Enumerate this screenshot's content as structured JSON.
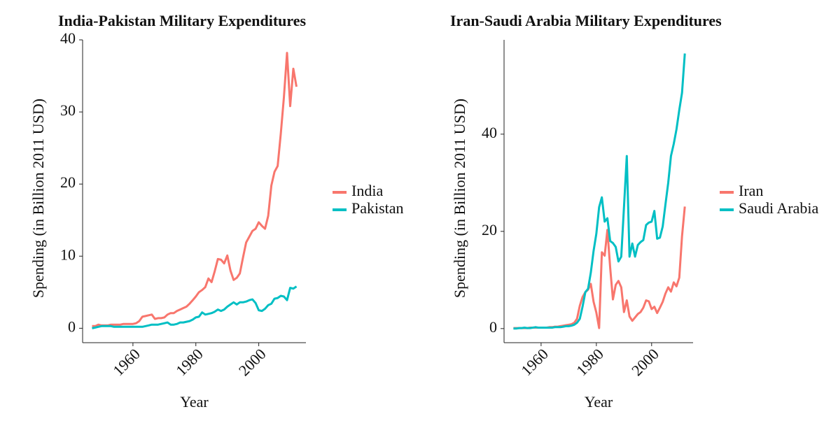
{
  "chart_data": [
    {
      "type": "line",
      "title": "India-Pakistan Military Expenditures",
      "x_label": "Year",
      "y_label": "Spending (in Billion 2011 USD)",
      "x": [
        1947,
        1948,
        1949,
        1950,
        1951,
        1952,
        1953,
        1954,
        1955,
        1956,
        1957,
        1958,
        1959,
        1960,
        1961,
        1962,
        1963,
        1964,
        1965,
        1966,
        1967,
        1968,
        1969,
        1970,
        1971,
        1972,
        1973,
        1974,
        1975,
        1976,
        1977,
        1978,
        1979,
        1980,
        1981,
        1982,
        1983,
        1984,
        1985,
        1986,
        1987,
        1988,
        1989,
        1990,
        1991,
        1992,
        1993,
        1994,
        1995,
        1996,
        1997,
        1998,
        1999,
        2000,
        2001,
        2002,
        2003,
        2004,
        2005,
        2006,
        2007,
        2008,
        2009,
        2010,
        2011,
        2012
      ],
      "series": [
        {
          "name": "India",
          "color": "#f8766d",
          "values": [
            0.3,
            0.3,
            0.5,
            0.4,
            0.4,
            0.4,
            0.5,
            0.5,
            0.5,
            0.5,
            0.6,
            0.6,
            0.6,
            0.6,
            0.7,
            1.0,
            1.6,
            1.7,
            1.8,
            1.9,
            1.3,
            1.4,
            1.4,
            1.5,
            1.9,
            2.1,
            2.1,
            2.4,
            2.6,
            2.8,
            3.0,
            3.4,
            3.9,
            4.4,
            5.0,
            5.3,
            5.7,
            6.9,
            6.4,
            7.9,
            9.6,
            9.5,
            9.0,
            10.1,
            8.0,
            6.7,
            7.0,
            7.6,
            9.8,
            11.9,
            12.7,
            13.5,
            13.8,
            14.7,
            14.2,
            13.8,
            15.6,
            19.8,
            21.7,
            22.5,
            27.0,
            32.0,
            38.2,
            30.8,
            36.0,
            33.5
          ]
        },
        {
          "name": "Pakistan",
          "color": "#00bfc4",
          "values": [
            0.0,
            0.1,
            0.2,
            0.3,
            0.3,
            0.3,
            0.3,
            0.2,
            0.2,
            0.2,
            0.2,
            0.2,
            0.2,
            0.2,
            0.2,
            0.2,
            0.2,
            0.3,
            0.4,
            0.5,
            0.5,
            0.5,
            0.6,
            0.7,
            0.8,
            0.5,
            0.5,
            0.6,
            0.8,
            0.8,
            0.9,
            1.0,
            1.2,
            1.5,
            1.6,
            2.2,
            1.9,
            2.0,
            2.1,
            2.3,
            2.6,
            2.4,
            2.6,
            3.0,
            3.3,
            3.6,
            3.3,
            3.6,
            3.6,
            3.7,
            3.9,
            4.0,
            3.5,
            2.5,
            2.4,
            2.7,
            3.2,
            3.4,
            4.1,
            4.2,
            4.5,
            4.4,
            3.9,
            5.6,
            5.5,
            5.8
          ]
        }
      ],
      "xlim": [
        1944,
        2015
      ],
      "ylim": [
        -2,
        40
      ],
      "xticks": [
        1960,
        1980,
        2000
      ],
      "yticks": [
        0,
        10,
        20,
        30,
        40
      ]
    },
    {
      "type": "line",
      "title": "Iran-Saudi Arabia Military Expenditures",
      "x_label": "Year",
      "y_label": "Spending (in Billion 2011 USD)",
      "x": [
        1950,
        1951,
        1952,
        1953,
        1954,
        1955,
        1956,
        1957,
        1958,
        1959,
        1960,
        1961,
        1962,
        1963,
        1964,
        1965,
        1966,
        1967,
        1968,
        1969,
        1970,
        1971,
        1972,
        1973,
        1974,
        1975,
        1976,
        1977,
        1978,
        1979,
        1980,
        1981,
        1982,
        1983,
        1984,
        1985,
        1986,
        1987,
        1988,
        1989,
        1990,
        1991,
        1992,
        1993,
        1994,
        1995,
        1996,
        1997,
        1998,
        1999,
        2000,
        2001,
        2002,
        2003,
        2004,
        2005,
        2006,
        2007,
        2008,
        2009,
        2010,
        2011,
        2012
      ],
      "series": [
        {
          "name": "Iran",
          "color": "#f8766d",
          "values": [
            0.1,
            0.1,
            0.1,
            0.1,
            0.1,
            0.1,
            0.2,
            0.2,
            0.2,
            0.2,
            0.2,
            0.2,
            0.2,
            0.3,
            0.3,
            0.4,
            0.4,
            0.5,
            0.6,
            0.7,
            0.8,
            0.9,
            1.2,
            2.0,
            4.7,
            6.5,
            7.5,
            8.0,
            9.2,
            5.5,
            3.3,
            0.1,
            15.7,
            15.0,
            20.3,
            12.5,
            6.0,
            9.0,
            9.8,
            8.5,
            3.4,
            5.8,
            2.5,
            1.6,
            2.3,
            3.0,
            3.4,
            4.3,
            5.8,
            5.6,
            4.0,
            4.5,
            3.2,
            4.3,
            5.5,
            7.2,
            8.5,
            7.6,
            9.5,
            8.7,
            10.5,
            19.0,
            25.1
          ]
        },
        {
          "name": "Saudi Arabia",
          "color": "#00bfc4",
          "values": [
            0.0,
            0.0,
            0.1,
            0.1,
            0.2,
            0.1,
            0.1,
            0.2,
            0.3,
            0.2,
            0.2,
            0.2,
            0.2,
            0.2,
            0.2,
            0.3,
            0.3,
            0.3,
            0.4,
            0.5,
            0.5,
            0.6,
            0.8,
            1.2,
            2.0,
            4.5,
            7.5,
            8.2,
            11.5,
            16.0,
            19.5,
            25.0,
            27.0,
            22.0,
            22.7,
            18.0,
            17.6,
            16.8,
            13.8,
            14.8,
            25.0,
            35.5,
            14.8,
            17.5,
            14.8,
            17.2,
            17.8,
            18.2,
            21.3,
            21.8,
            22.0,
            24.2,
            18.5,
            18.7,
            21.0,
            25.5,
            30.0,
            35.5,
            38.0,
            41.0,
            45.0,
            48.5,
            56.6
          ]
        }
      ],
      "xlim": [
        1946.6,
        2015
      ],
      "ylim": [
        -2.9,
        59.4
      ],
      "xticks": [
        1960,
        1980,
        2000
      ],
      "yticks": [
        0,
        20,
        40
      ]
    }
  ]
}
